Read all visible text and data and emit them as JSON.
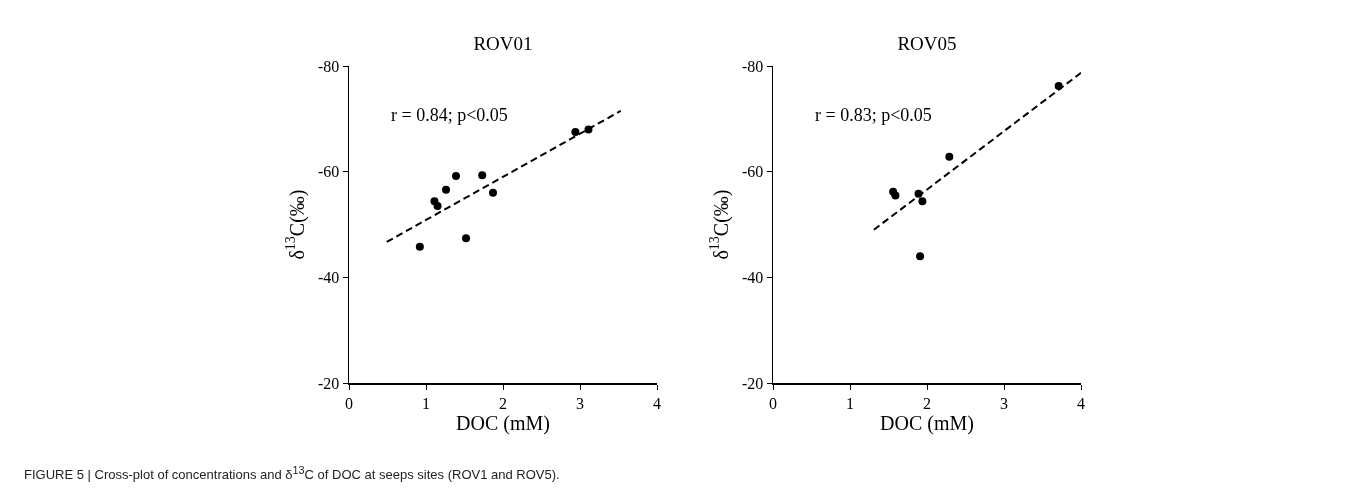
{
  "chart_data": [
    {
      "type": "scatter",
      "title": "ROV01",
      "xlabel": "DOC (mM)",
      "ylabel": "δ$^{13}$C(‰)",
      "xlim": [
        0,
        4
      ],
      "xticks": [
        0,
        1,
        2,
        3,
        4
      ],
      "ylim": [
        -20,
        -80
      ],
      "yticks": [
        -80,
        -60,
        -40,
        -20
      ],
      "annotations": [
        "r = 0.84; p<0.05",
        "FIGURE 5 | Cross-plot of concentrations and δ$^{13}$C of DOC at seeps sites (ROV1 and ROV5)."
      ],
      "series": [
        {
          "type": "scatter",
          "color": "#000000",
          "marker": "circle",
          "x": [
            0.92,
            1.11,
            1.15,
            1.26,
            1.39,
            1.52,
            1.73,
            1.87,
            2.94,
            3.11
          ],
          "values": [
            -45.8,
            -54.4,
            -53.5,
            -56.6,
            -59.2,
            -47.4,
            -59.3,
            -56.0,
            -67.5,
            -68.0
          ]
        },
        {
          "type": "line",
          "color": "#000000",
          "marker": "none",
          "line_style": "dashed",
          "x": [
            0.49,
            3.53
          ],
          "values": [
            -46.7,
            -71.5
          ]
        }
      ]
    },
    {
      "type": "scatter",
      "title": "ROV05",
      "xlabel": "DOC (mM)",
      "ylabel": "δ$^{13}$C(‰)",
      "xlim": [
        0,
        4
      ],
      "xticks": [
        0,
        1,
        2,
        3,
        4
      ],
      "ylim": [
        -20,
        -80
      ],
      "yticks": [
        -80,
        -60,
        -40,
        -20
      ],
      "annotations": [
        "r = 0.83; p<0.05"
      ],
      "series": [
        {
          "type": "scatter",
          "color": "#000000",
          "marker": "circle",
          "x": [
            1.56,
            1.59,
            1.89,
            1.94,
            2.29,
            1.91,
            3.71
          ],
          "values": [
            -56.2,
            -55.5,
            -55.8,
            -54.4,
            -62.8,
            -44.0,
            -76.2
          ]
        },
        {
          "type": "line",
          "color": "#000000",
          "marker": "none",
          "line_style": "dashed",
          "x": [
            1.31,
            4.0
          ],
          "values": [
            -49.0,
            -78.7
          ]
        }
      ]
    }
  ]
}
